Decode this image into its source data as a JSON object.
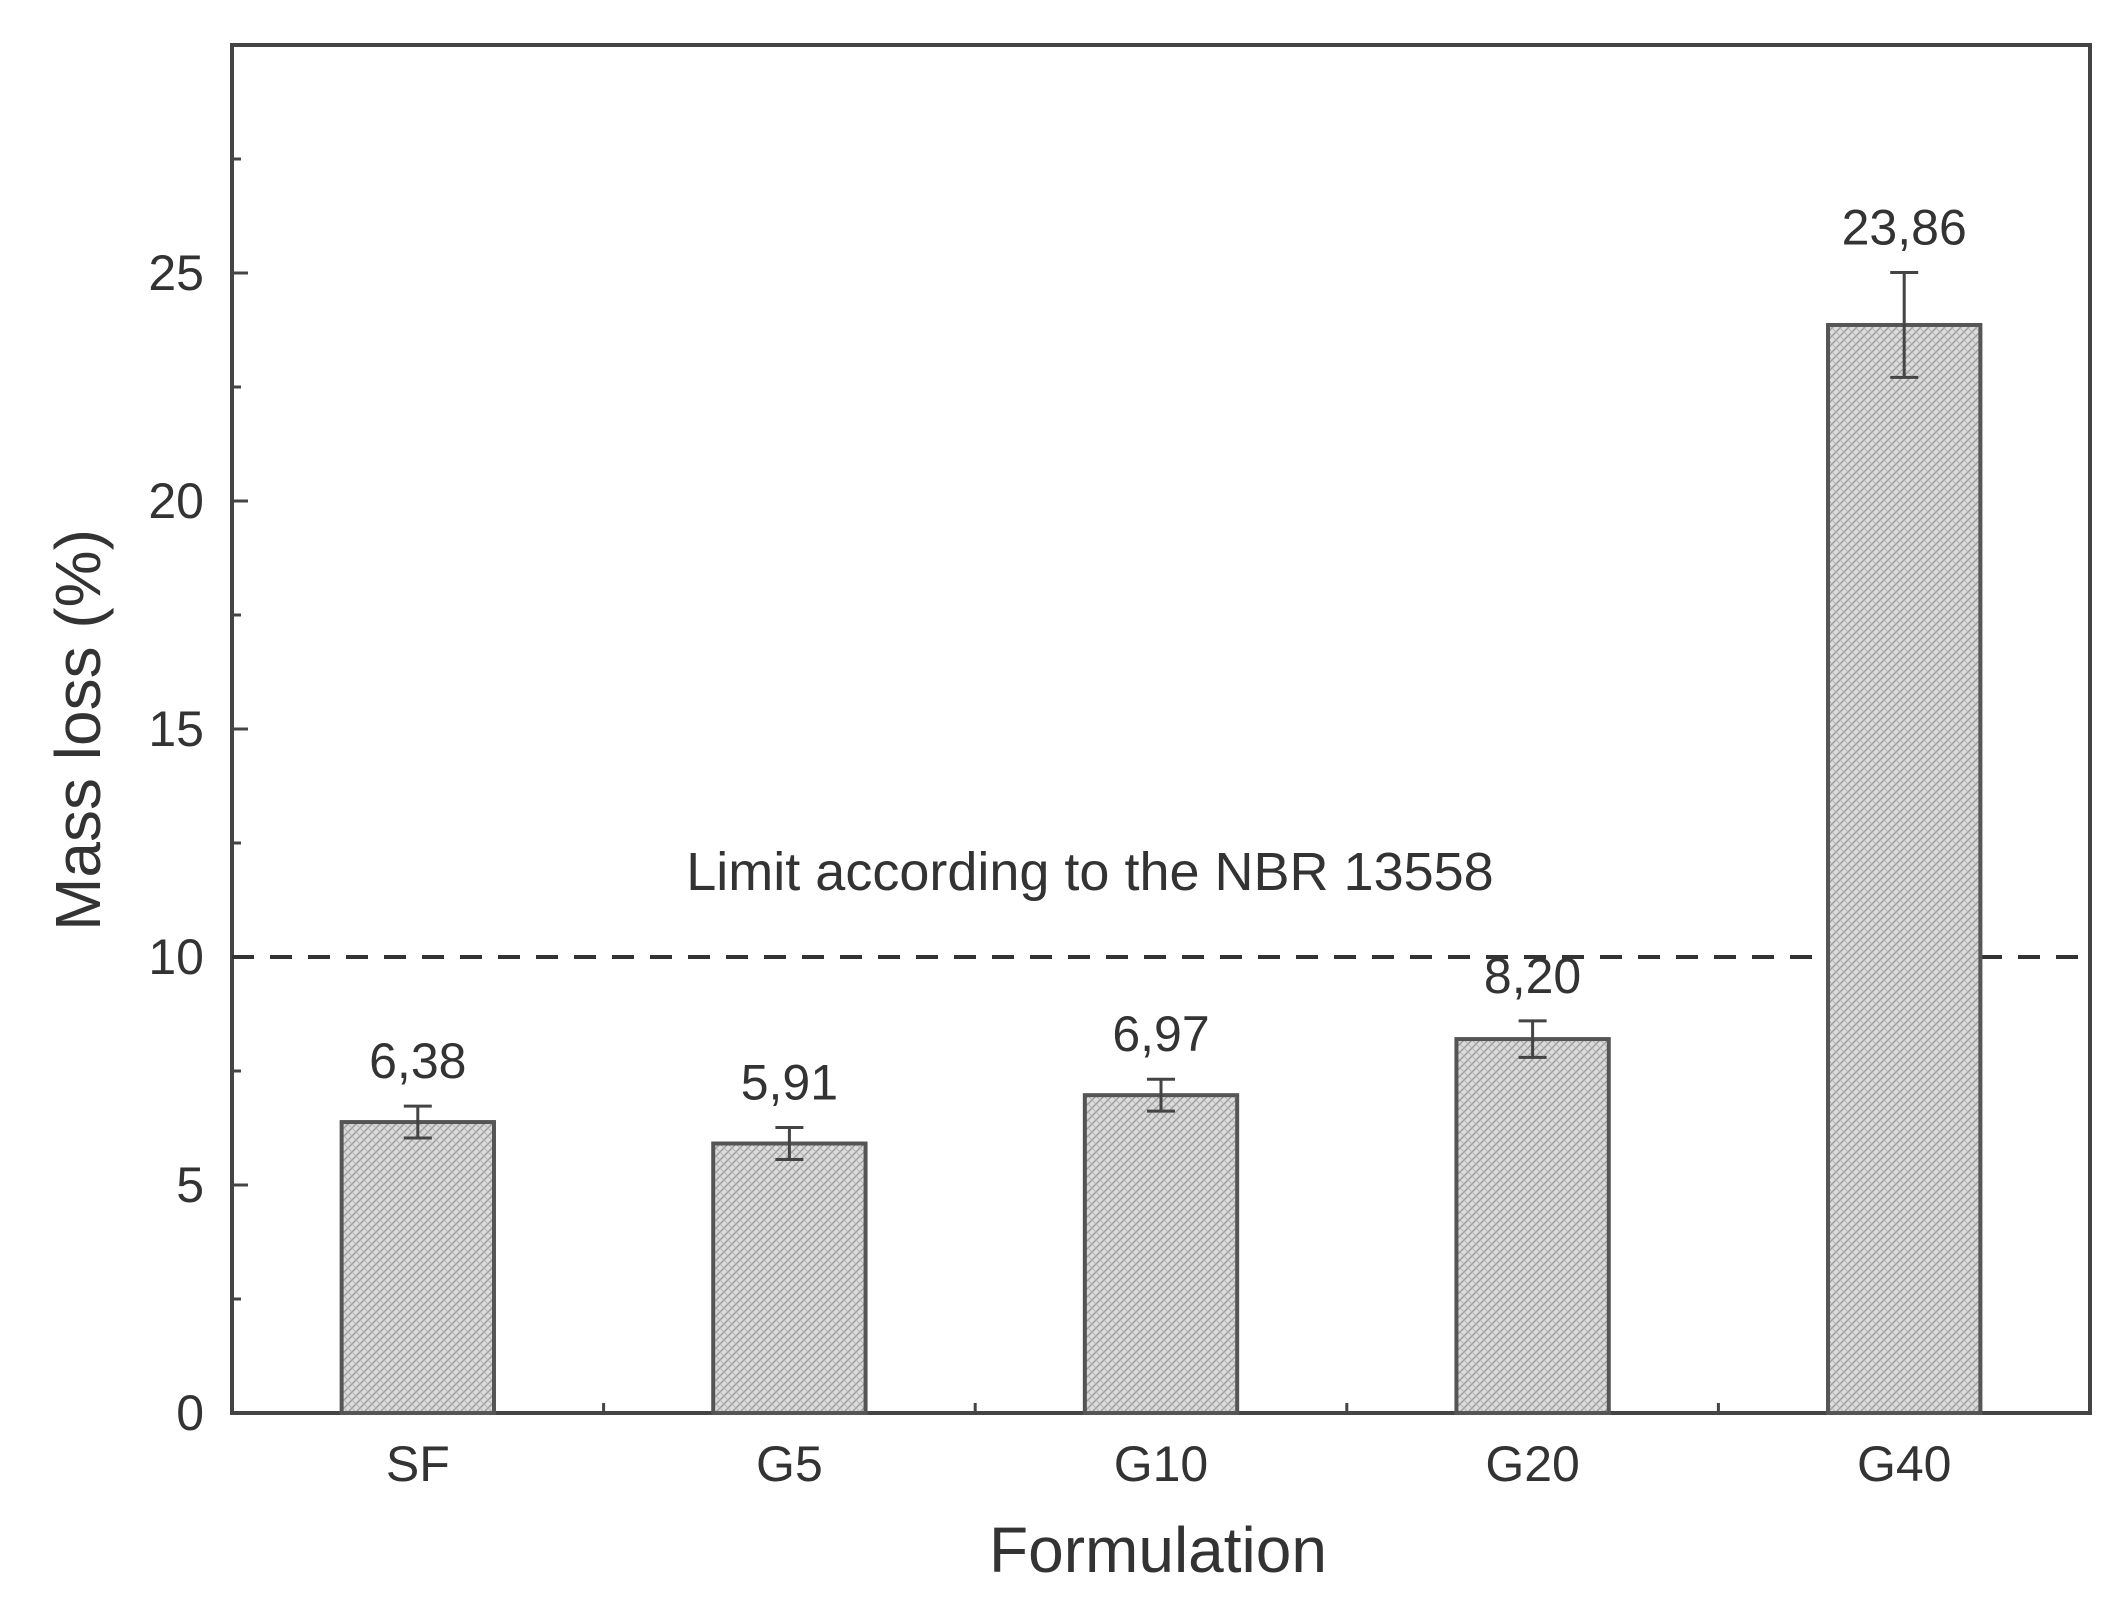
{
  "chart_data": {
    "type": "bar",
    "title": "",
    "xlabel": "Formulation",
    "ylabel": "Mass loss (%)",
    "categories": [
      "SF",
      "G5",
      "G10",
      "G20",
      "G40"
    ],
    "values": [
      6.38,
      5.91,
      6.97,
      8.2,
      23.86
    ],
    "value_labels": [
      "6,38",
      "5,91",
      "6,97",
      "8,20",
      "23,86"
    ],
    "error": [
      0.35,
      0.35,
      0.35,
      0.4,
      1.15
    ],
    "ylim": [
      0,
      30
    ],
    "yticks": [
      0,
      5,
      10,
      15,
      20,
      25
    ],
    "ytick_labels": [
      "0",
      "5",
      "10",
      "15",
      "20",
      "25"
    ],
    "grid": false,
    "bar_fill": "hatched light grey",
    "reference_line": {
      "value": 10,
      "style": "dashed",
      "label": "Limit according to the NBR 13558"
    },
    "colors": {
      "bar_fill": "#d6d6d6",
      "bar_stroke": "#555555",
      "axis": "#444444",
      "text": "#333333"
    }
  }
}
